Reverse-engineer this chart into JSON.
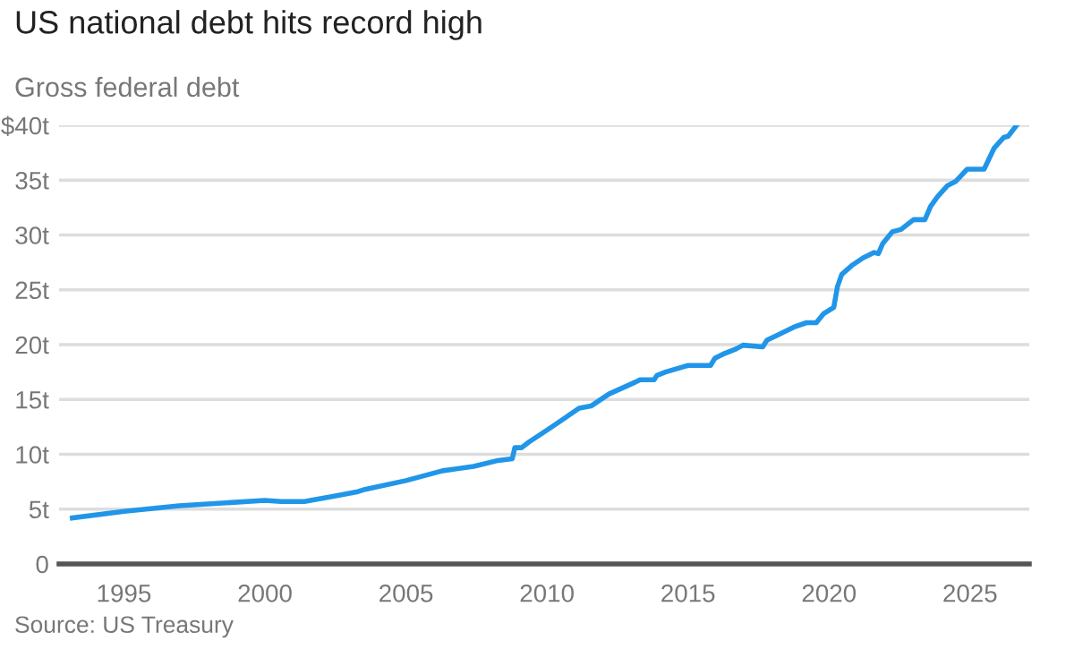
{
  "chart_data": {
    "type": "line",
    "title": "US national debt hits record high",
    "subtitle": "Gross federal debt",
    "annotations": [
      "Source: US Treasury"
    ],
    "x": [
      1993.17,
      1995,
      1996.96,
      2000,
      2000.57,
      2001.4,
      2002.5,
      2003.3,
      2003.55,
      2005,
      2006.3,
      2007.4,
      2008.2,
      2008.77,
      2008.86,
      2009.1,
      2009.35,
      2010,
      2010.4,
      2011.14,
      2011.56,
      2012.2,
      2013.15,
      2013.3,
      2013.8,
      2013.9,
      2014.2,
      2015,
      2015.8,
      2015.95,
      2016.3,
      2016.7,
      2016.95,
      2017.65,
      2017.8,
      2018.2,
      2018.75,
      2019.2,
      2019.55,
      2019.8,
      2020.17,
      2020.3,
      2020.45,
      2020.8,
      2021.2,
      2021.6,
      2021.75,
      2021.9,
      2022.25,
      2022.55,
      2023,
      2023.4,
      2023.6,
      2023.85,
      2024.2,
      2024.5,
      2024.9,
      2025.5,
      2025.85,
      2026.2,
      2026.35,
      2026.65
    ],
    "series": [
      {
        "color": "#2196e8",
        "values": [
          4.2,
          4.8,
          5.3,
          5.8,
          5.7,
          5.7,
          6.2,
          6.6,
          6.8,
          7.6,
          8.5,
          8.9,
          9.4,
          9.6,
          10.6,
          10.6,
          11.1,
          12.2,
          12.9,
          14.2,
          14.4,
          15.5,
          16.6,
          16.8,
          16.8,
          17.2,
          17.5,
          18.1,
          18.1,
          18.75,
          19.2,
          19.6,
          19.95,
          19.8,
          20.4,
          20.9,
          21.6,
          22.0,
          22.0,
          22.8,
          23.4,
          25.3,
          26.4,
          27.2,
          27.9,
          28.4,
          28.3,
          29.2,
          30.3,
          30.5,
          31.4,
          31.4,
          32.6,
          33.5,
          34.5,
          34.9,
          36.0,
          36.0,
          37.9,
          38.9,
          39.0,
          40.0
        ]
      }
    ],
    "xlim": [
      1992.7,
      2027.1
    ],
    "xticks": [
      1995,
      2000,
      2005,
      2010,
      2015,
      2020,
      2025
    ],
    "ylim": [
      0,
      40
    ],
    "yticks": [
      {
        "value": 0,
        "label": "0"
      },
      {
        "value": 5,
        "label": "5t"
      },
      {
        "value": 10,
        "label": "10t"
      },
      {
        "value": 15,
        "label": "15t"
      },
      {
        "value": 20,
        "label": "20t"
      },
      {
        "value": 25,
        "label": "25t"
      },
      {
        "value": 30,
        "label": "30t"
      },
      {
        "value": 35,
        "label": "35t"
      },
      {
        "value": 40,
        "label": "$40t"
      }
    ],
    "grid": "y",
    "line_style": "solid"
  }
}
